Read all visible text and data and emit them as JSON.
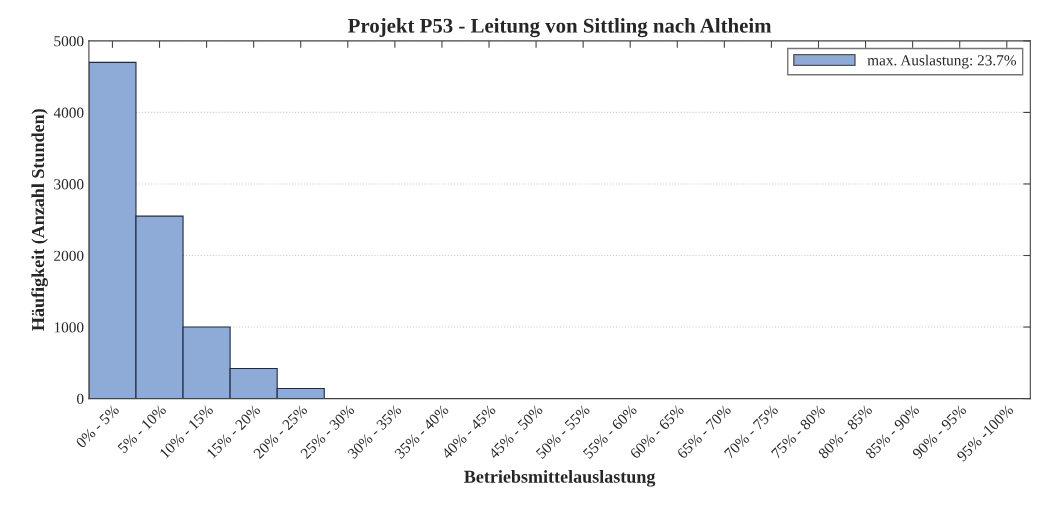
{
  "chart_data": {
    "type": "bar",
    "title": "Projekt P53 - Leitung von Sittling nach Altheim",
    "xlabel": "Betriebsmittelauslastung",
    "ylabel": "Häufigkeit (Anzahl Stunden)",
    "categories": [
      "0% - 5%",
      "5% - 10%",
      "10% - 15%",
      "15% - 20%",
      "20% - 25%",
      "25% - 30%",
      "30% - 35%",
      "35% - 40%",
      "40% - 45%",
      "45% - 50%",
      "50% - 55%",
      "55% - 60%",
      "60% - 65%",
      "65% - 70%",
      "70% - 75%",
      "75% - 80%",
      "80% - 85%",
      "85% - 90%",
      "90% - 95%",
      "95% -100%"
    ],
    "series": [
      {
        "name": "max. Auslastung: 23.7%",
        "color": "#8eaad6",
        "values": [
          4700,
          2550,
          1000,
          420,
          140,
          0,
          0,
          0,
          0,
          0,
          0,
          0,
          0,
          0,
          0,
          0,
          0,
          0,
          0,
          0
        ]
      }
    ],
    "ylim": [
      0,
      5000
    ],
    "yticks": [
      0,
      1000,
      2000,
      3000,
      4000,
      5000
    ],
    "grid": "y",
    "legend": "top right"
  }
}
